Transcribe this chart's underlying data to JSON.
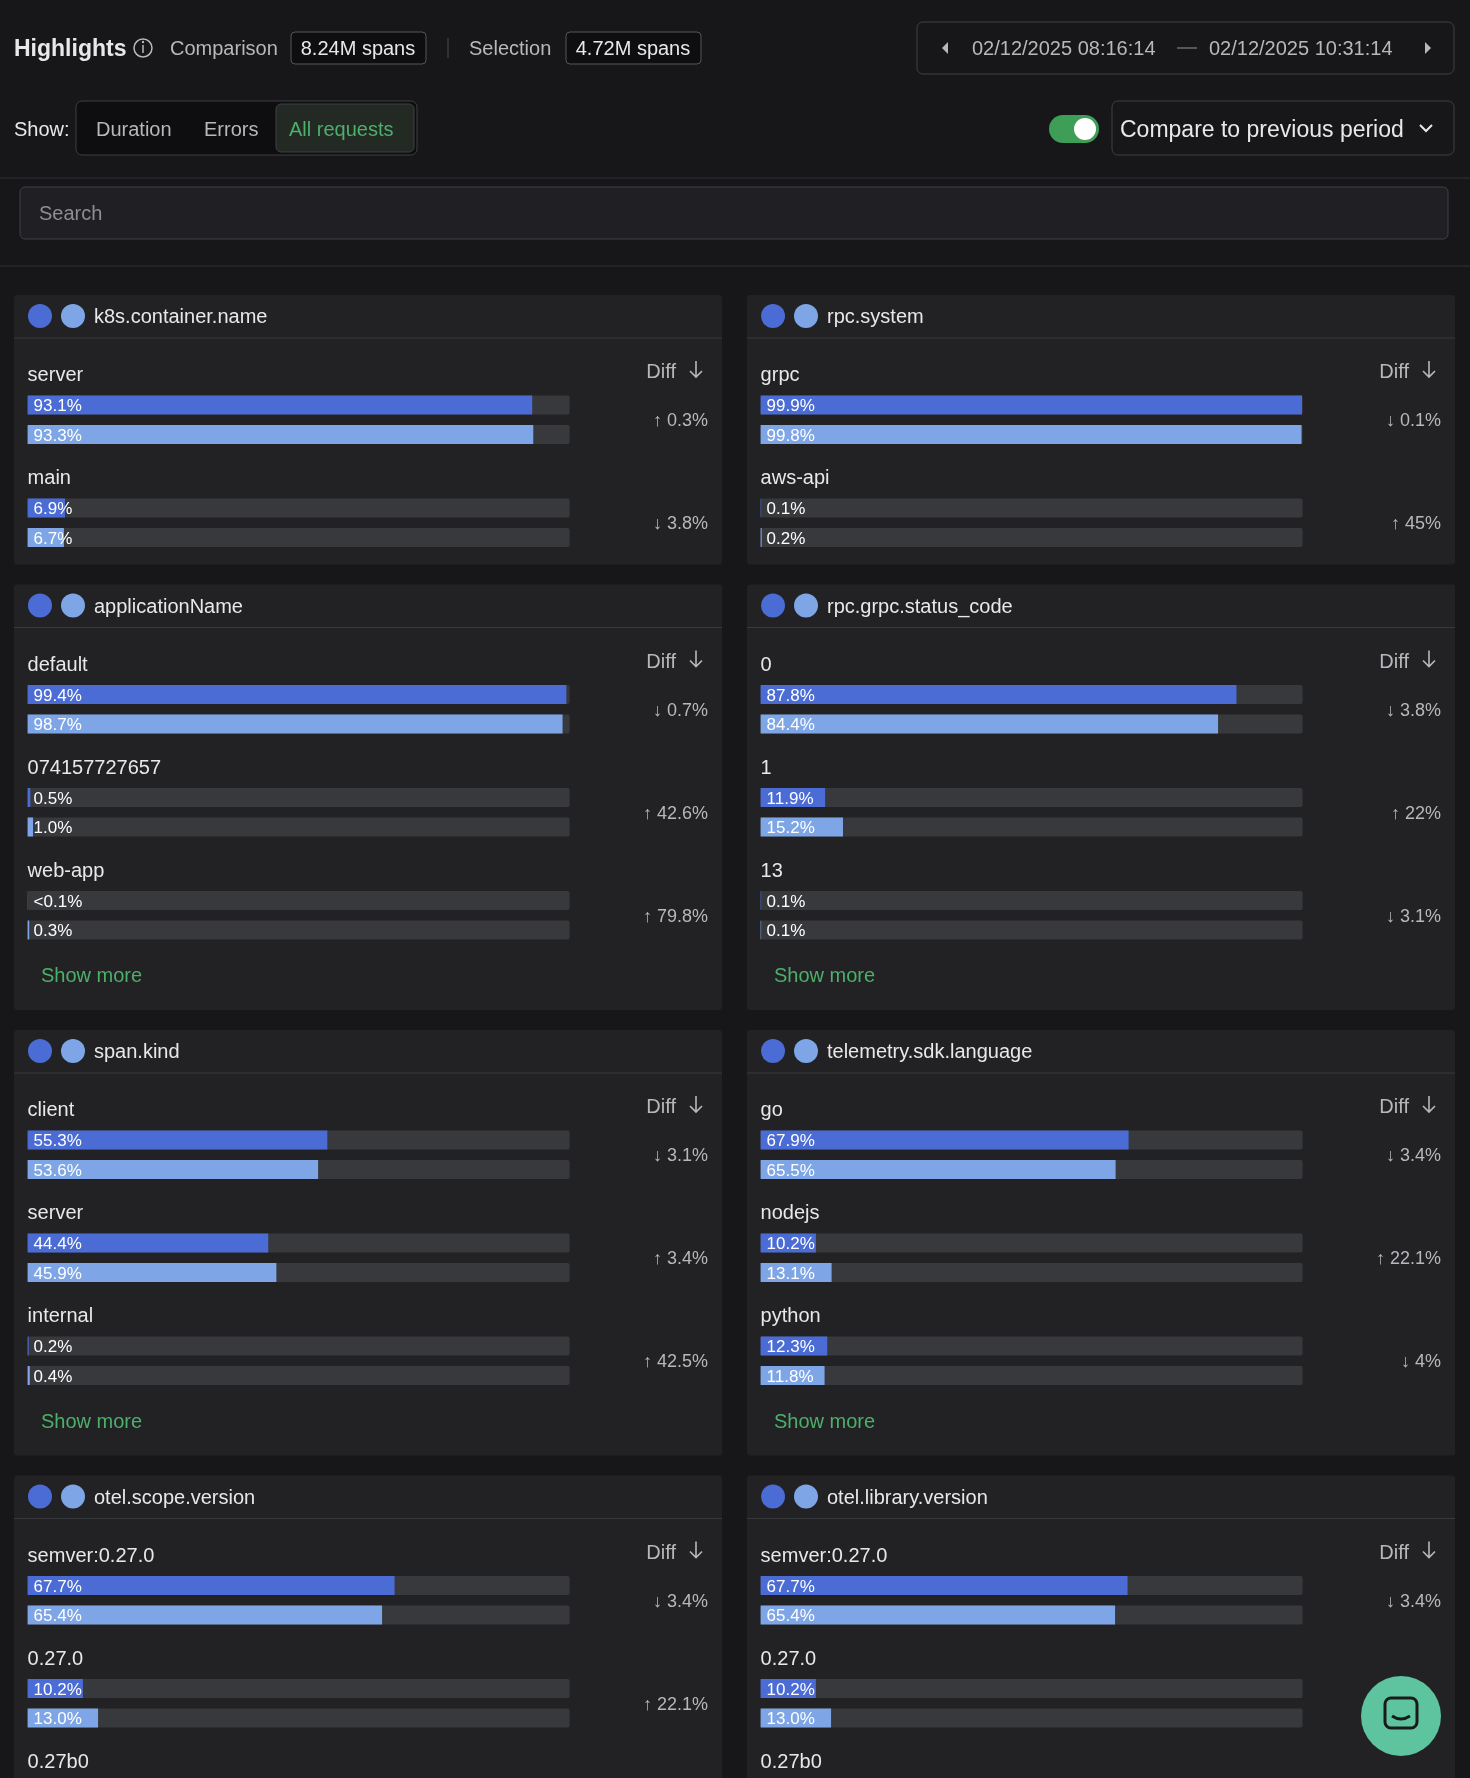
{
  "chart_data": [
    {
      "type": "other",
      "title": "Highlights",
      "annotations": [
        "Comparison",
        "8.24M spans",
        "Selection",
        "4.72M spans",
        "02/12/2025 08:16:14",
        "02/12/2025 10:31:14",
        "Show:",
        "Duration",
        "Errors",
        "All requests",
        "Compare to previous period",
        "Search"
      ]
    },
    {
      "type": "bar",
      "orientation": "horizontal",
      "title": "k8s.container.name",
      "categories": [
        "server",
        "main"
      ],
      "xlim": [
        0,
        100
      ],
      "series": [
        {
          "color": "#4a6cd4",
          "values": [
            93.1,
            6.9
          ],
          "value_labels": [
            "93.1%",
            "6.9%"
          ]
        },
        {
          "color": "#7ea6e6",
          "values": [
            93.3,
            6.7
          ],
          "value_labels": [
            "93.3%",
            "6.7%"
          ]
        }
      ],
      "annotations": [
        "Diff",
        "↑ 0.3%",
        "↓ 3.8%"
      ]
    },
    {
      "type": "bar",
      "orientation": "horizontal",
      "title": "rpc.system",
      "categories": [
        "grpc",
        "aws-api"
      ],
      "xlim": [
        0,
        100
      ],
      "series": [
        {
          "color": "#4a6cd4",
          "values": [
            99.9,
            0.1
          ],
          "value_labels": [
            "99.9%",
            "0.1%"
          ]
        },
        {
          "color": "#7ea6e6",
          "values": [
            99.8,
            0.2
          ],
          "value_labels": [
            "99.8%",
            "0.2%"
          ]
        }
      ],
      "annotations": [
        "Diff",
        "↓ 0.1%",
        "↑ 45%"
      ]
    },
    {
      "type": "bar",
      "orientation": "horizontal",
      "title": "applicationName",
      "categories": [
        "default",
        "074157727657",
        "web-app"
      ],
      "xlim": [
        0,
        100
      ],
      "series": [
        {
          "color": "#4a6cd4",
          "values": [
            99.4,
            0.5,
            0.05
          ],
          "value_labels": [
            "99.4%",
            "0.5%",
            "<0.1%"
          ]
        },
        {
          "color": "#7ea6e6",
          "values": [
            98.7,
            1.0,
            0.3
          ],
          "value_labels": [
            "98.7%",
            "1.0%",
            "0.3%"
          ]
        }
      ],
      "annotations": [
        "Diff",
        "↓ 0.7%",
        "↑ 42.6%",
        "↑ 79.8%",
        "Show more"
      ]
    },
    {
      "type": "bar",
      "orientation": "horizontal",
      "title": "rpc.grpc.status_code",
      "categories": [
        "0",
        "1",
        "13"
      ],
      "xlim": [
        0,
        100
      ],
      "series": [
        {
          "color": "#4a6cd4",
          "values": [
            87.8,
            11.9,
            0.1
          ],
          "value_labels": [
            "87.8%",
            "11.9%",
            "0.1%"
          ]
        },
        {
          "color": "#7ea6e6",
          "values": [
            84.4,
            15.2,
            0.1
          ],
          "value_labels": [
            "84.4%",
            "15.2%",
            "0.1%"
          ]
        }
      ],
      "annotations": [
        "Diff",
        "↓ 3.8%",
        "↑ 22%",
        "↓ 3.1%",
        "Show more"
      ]
    },
    {
      "type": "bar",
      "orientation": "horizontal",
      "title": "span.kind",
      "categories": [
        "client",
        "server",
        "internal"
      ],
      "xlim": [
        0,
        100
      ],
      "series": [
        {
          "color": "#4a6cd4",
          "values": [
            55.3,
            44.4,
            0.2
          ],
          "value_labels": [
            "55.3%",
            "44.4%",
            "0.2%"
          ]
        },
        {
          "color": "#7ea6e6",
          "values": [
            53.6,
            45.9,
            0.4
          ],
          "value_labels": [
            "53.6%",
            "45.9%",
            "0.4%"
          ]
        }
      ],
      "annotations": [
        "Diff",
        "↓ 3.1%",
        "↑ 3.4%",
        "↑ 42.5%",
        "Show more"
      ]
    },
    {
      "type": "bar",
      "orientation": "horizontal",
      "title": "telemetry.sdk.language",
      "categories": [
        "go",
        "nodejs",
        "python"
      ],
      "xlim": [
        0,
        100
      ],
      "series": [
        {
          "color": "#4a6cd4",
          "values": [
            67.9,
            10.2,
            12.3
          ],
          "value_labels": [
            "67.9%",
            "10.2%",
            "12.3%"
          ]
        },
        {
          "color": "#7ea6e6",
          "values": [
            65.5,
            13.1,
            11.8
          ],
          "value_labels": [
            "65.5%",
            "13.1%",
            "11.8%"
          ]
        }
      ],
      "annotations": [
        "Diff",
        "↓ 3.4%",
        "↑ 22.1%",
        "↓ 4%",
        "Show more"
      ]
    },
    {
      "type": "bar",
      "orientation": "horizontal",
      "title": "otel.scope.version",
      "categories": [
        "semver:0.27.0",
        "0.27.0",
        "0.27b0"
      ],
      "xlim": [
        0,
        100
      ],
      "series": [
        {
          "color": "#4a6cd4",
          "values": [
            67.7,
            10.2,
            null
          ],
          "value_labels": [
            "67.7%",
            "10.2%",
            null
          ]
        },
        {
          "color": "#7ea6e6",
          "values": [
            65.4,
            13.0,
            null
          ],
          "value_labels": [
            "65.4%",
            "13.0%",
            null
          ]
        }
      ],
      "annotations": [
        "Diff",
        "↓ 3.4%",
        "↑ 22.1%"
      ]
    },
    {
      "type": "bar",
      "orientation": "horizontal",
      "title": "otel.library.version",
      "categories": [
        "semver:0.27.0",
        "0.27.0",
        "0.27b0"
      ],
      "xlim": [
        0,
        100
      ],
      "series": [
        {
          "color": "#4a6cd4",
          "values": [
            67.7,
            10.2,
            null
          ],
          "value_labels": [
            "67.7%",
            "10.2%",
            null
          ]
        },
        {
          "color": "#7ea6e6",
          "values": [
            65.4,
            13.0,
            null
          ],
          "value_labels": [
            "65.4%",
            "13.0%",
            null
          ]
        }
      ],
      "annotations": [
        "Diff",
        "↓ 3.4%"
      ]
    }
  ]
}
